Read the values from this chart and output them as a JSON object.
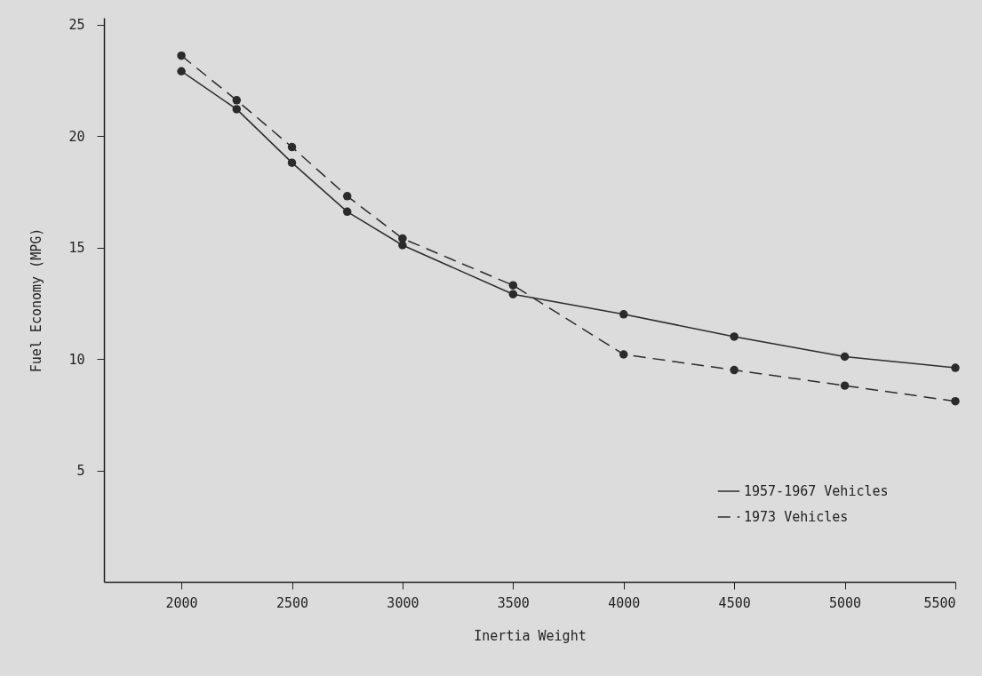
{
  "chart_data": {
    "type": "line",
    "xlabel": "Inertia Weight",
    "ylabel": "Fuel Economy (MPG)",
    "x": [
      2000,
      2250,
      2500,
      2750,
      3000,
      3500,
      4000,
      4500,
      5000,
      5500
    ],
    "xlim": [
      1650,
      5500
    ],
    "xticks": [
      2000,
      2500,
      3000,
      3500,
      4000,
      4500,
      5000,
      5500
    ],
    "ylim": [
      0,
      25.3
    ],
    "yticks": [
      5,
      10,
      15,
      20,
      25
    ],
    "legend": "bottom right",
    "marker": "circle",
    "series": [
      {
        "name": "1957-1967 Vehicles",
        "color": "#2b2b2b",
        "line_style": "solid",
        "values": [
          22.9,
          21.2,
          18.8,
          16.6,
          15.1,
          12.9,
          12.0,
          11.0,
          10.1,
          9.6
        ]
      },
      {
        "name": "1973 Vehicles",
        "color": "#2b2b2b",
        "line_style": "dashed",
        "values": [
          23.6,
          21.6,
          19.5,
          17.3,
          15.4,
          13.3,
          10.2,
          9.5,
          8.8,
          8.1
        ]
      }
    ]
  }
}
